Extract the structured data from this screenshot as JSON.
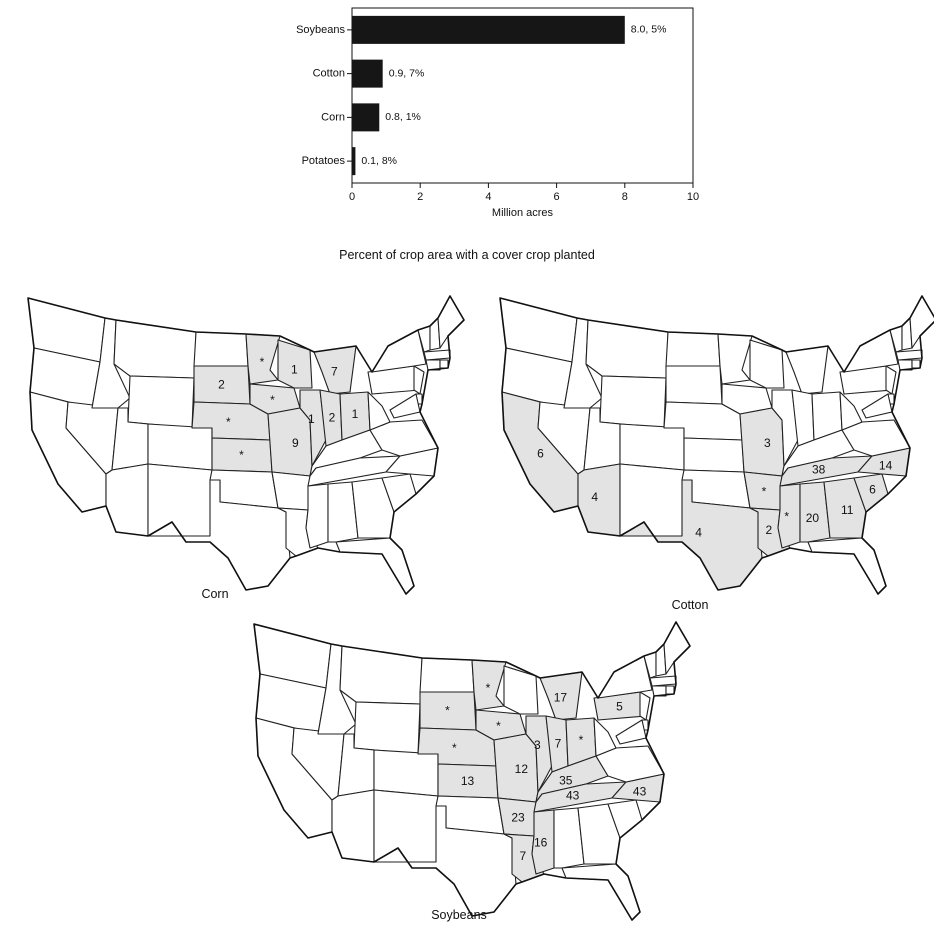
{
  "chart_data": {
    "type": "bar",
    "orientation": "horizontal",
    "categories": [
      "Soybeans",
      "Cotton",
      "Corn",
      "Potatoes"
    ],
    "values": [
      8.0,
      0.9,
      0.8,
      0.1
    ],
    "data_labels": [
      "8.0, 5%",
      "0.9, 7%",
      "0.8, 1%",
      "0.1, 8%"
    ],
    "xlabel": "Million acres",
    "xlim": [
      0,
      10
    ],
    "xticks": [
      0,
      2,
      4,
      6,
      8,
      10
    ],
    "grid": false
  },
  "section_title": "Percent of crop area with a cover crop planted",
  "maps": [
    {
      "label": "Corn",
      "states": [
        {
          "state": "SD",
          "value": "2"
        },
        {
          "state": "MN",
          "value": "*"
        },
        {
          "state": "NE",
          "value": "*"
        },
        {
          "state": "IA",
          "value": "*"
        },
        {
          "state": "KS",
          "value": "*"
        },
        {
          "state": "MO",
          "value": "9"
        },
        {
          "state": "WI",
          "value": "1"
        },
        {
          "state": "IL",
          "value": "1"
        },
        {
          "state": "IN",
          "value": "2"
        },
        {
          "state": "OH",
          "value": "1"
        },
        {
          "state": "MI",
          "value": "7"
        }
      ]
    },
    {
      "label": "Cotton",
      "states": [
        {
          "state": "CA",
          "value": "6"
        },
        {
          "state": "AZ",
          "value": "4"
        },
        {
          "state": "TX",
          "value": "4"
        },
        {
          "state": "MO",
          "value": "3"
        },
        {
          "state": "AR",
          "value": "*"
        },
        {
          "state": "LA",
          "value": "2"
        },
        {
          "state": "MS",
          "value": "*"
        },
        {
          "state": "TN",
          "value": "38"
        },
        {
          "state": "AL",
          "value": "20"
        },
        {
          "state": "GA",
          "value": "11"
        },
        {
          "state": "SC",
          "value": "6"
        },
        {
          "state": "NC",
          "value": "14"
        }
      ]
    },
    {
      "label": "Soybeans",
      "states": [
        {
          "state": "SD",
          "value": "*"
        },
        {
          "state": "MN",
          "value": "*"
        },
        {
          "state": "NE",
          "value": "*"
        },
        {
          "state": "IA",
          "value": "*"
        },
        {
          "state": "KS",
          "value": "13"
        },
        {
          "state": "MO",
          "value": "12"
        },
        {
          "state": "IL",
          "value": "3"
        },
        {
          "state": "IN",
          "value": "7"
        },
        {
          "state": "OH",
          "value": "*"
        },
        {
          "state": "MI",
          "value": "17"
        },
        {
          "state": "PA",
          "value": "5"
        },
        {
          "state": "KY",
          "value": "35"
        },
        {
          "state": "TN",
          "value": "43"
        },
        {
          "state": "NC",
          "value": "43"
        },
        {
          "state": "AR",
          "value": "23"
        },
        {
          "state": "MS",
          "value": "16"
        },
        {
          "state": "LA",
          "value": "7"
        }
      ]
    }
  ]
}
